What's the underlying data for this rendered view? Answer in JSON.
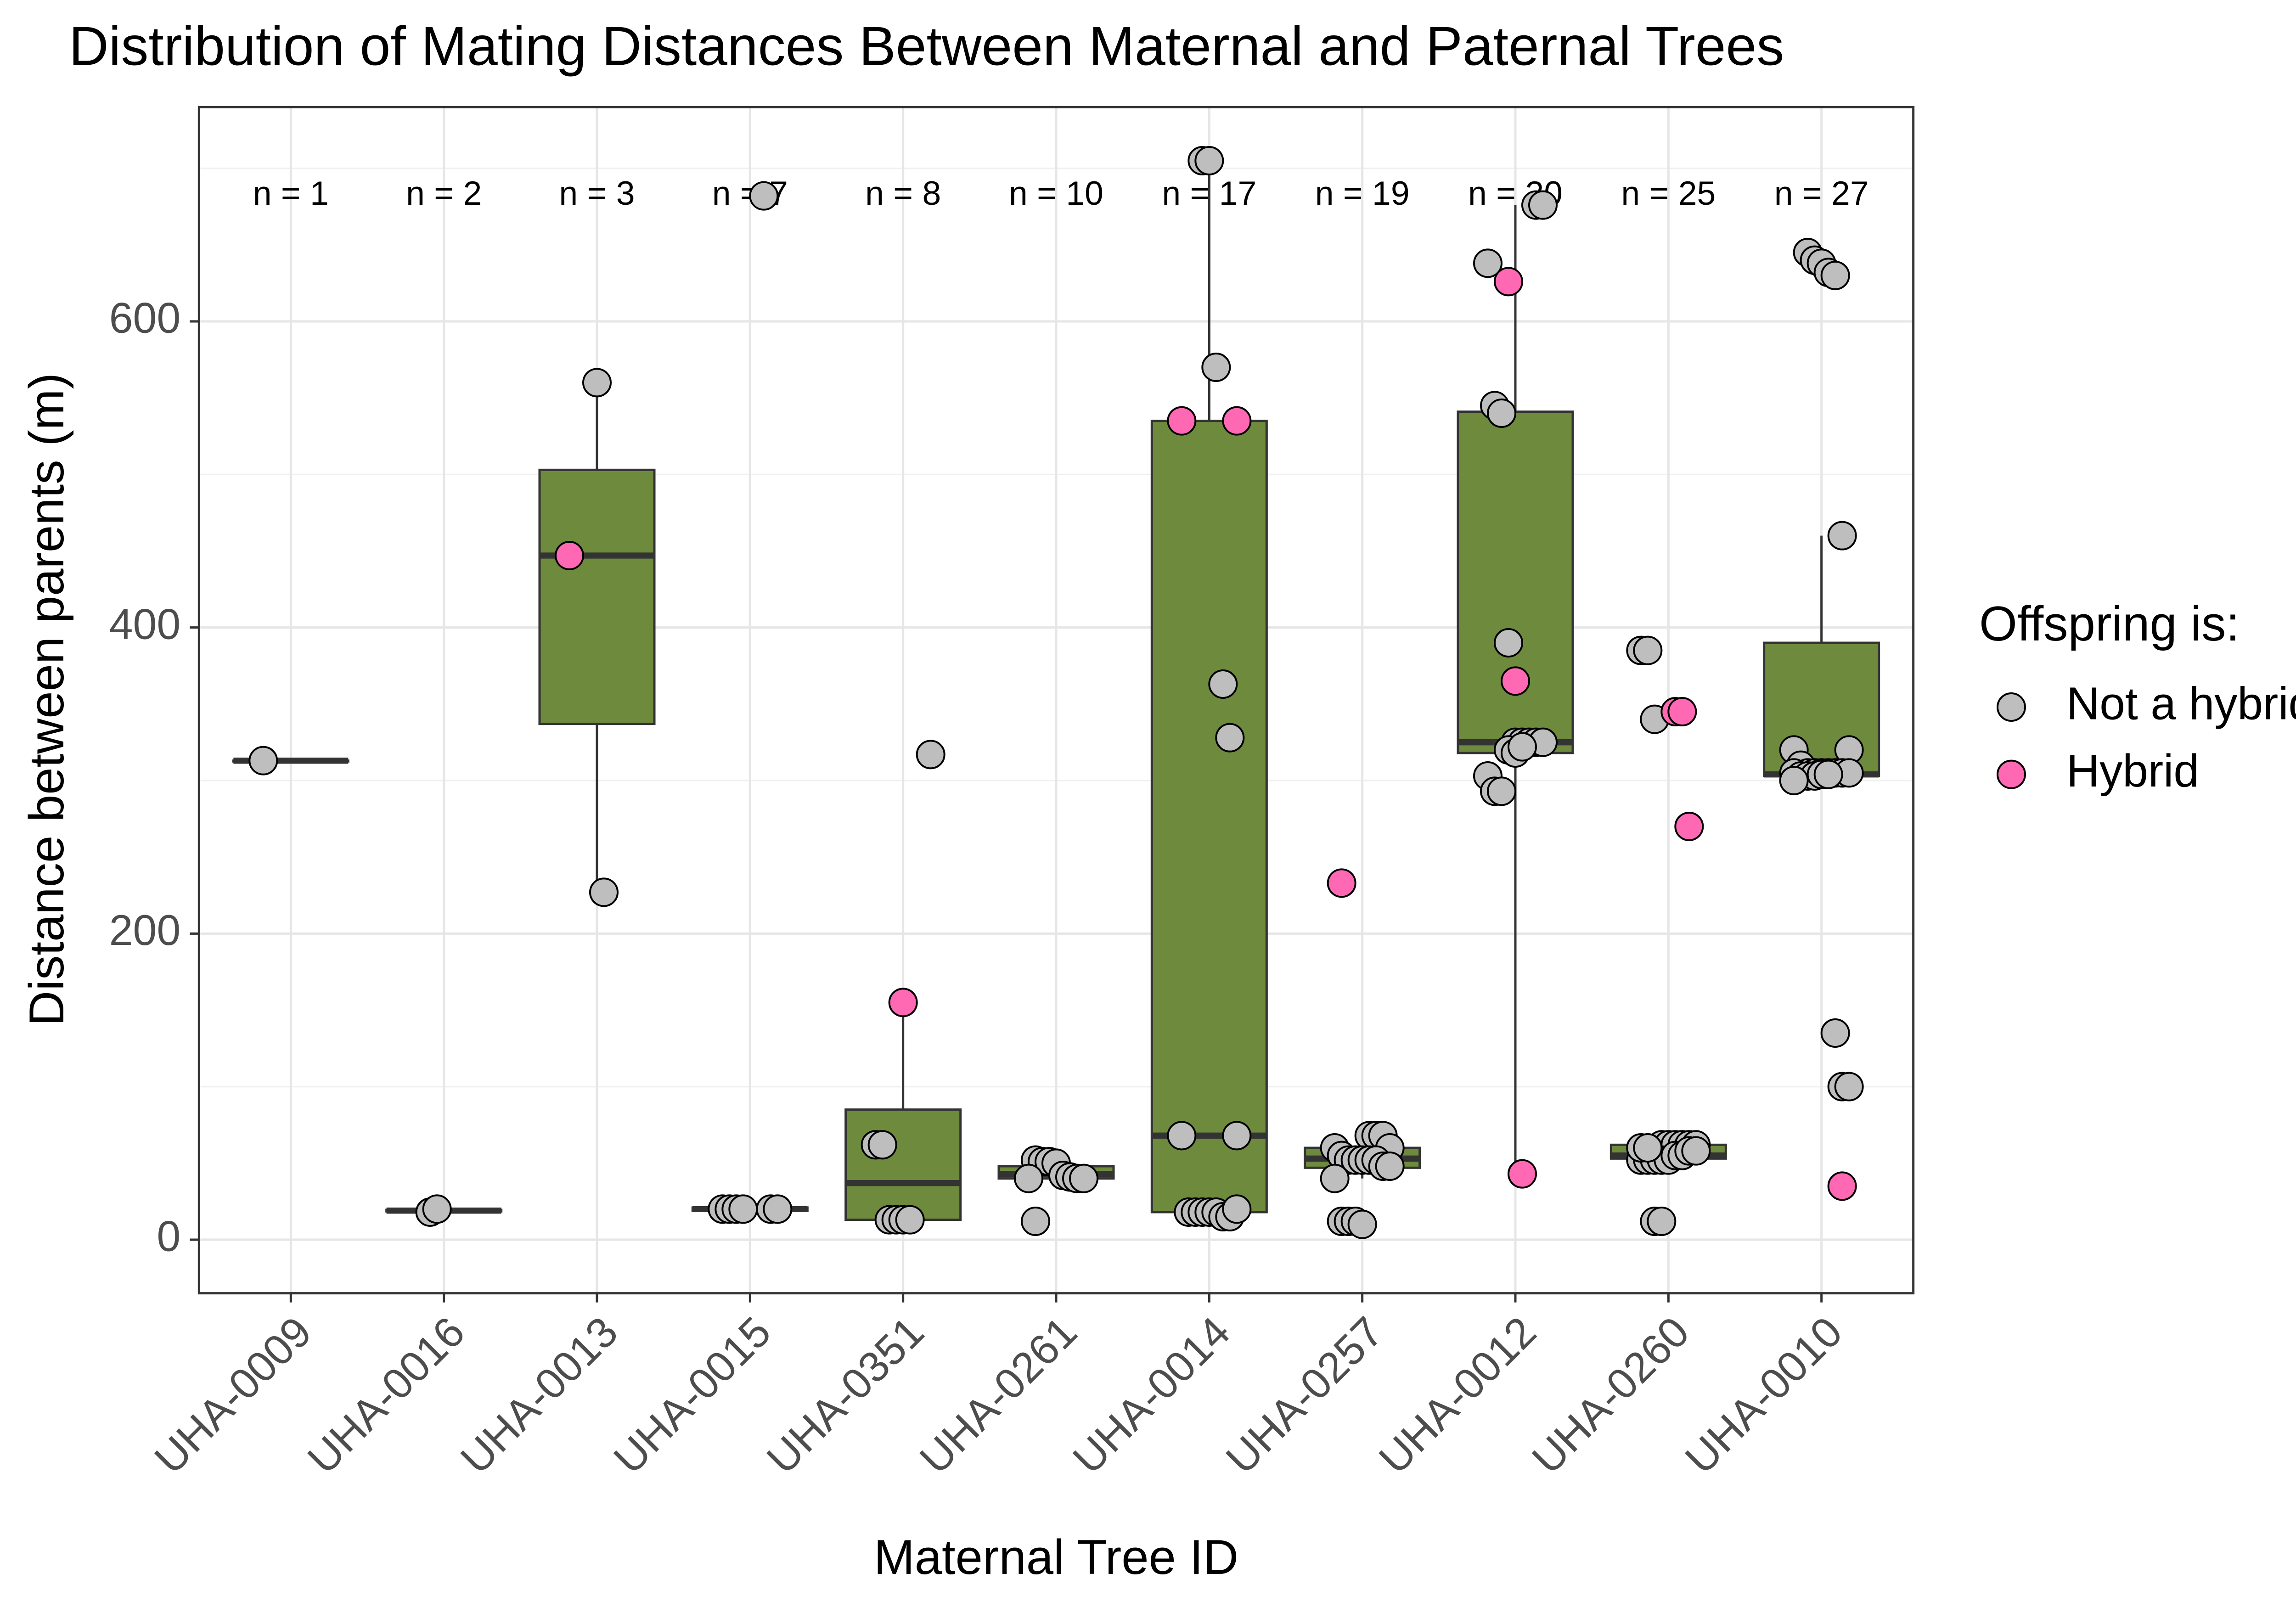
{
  "chart_data": {
    "type": "box",
    "title": "Distribution of Mating Distances Between Maternal and Paternal Trees",
    "x_label": "Maternal Tree ID",
    "y_label": "Distance between parents (m)",
    "categories": [
      "UHA-0009",
      "UHA-0016",
      "UHA-0013",
      "UHA-0015",
      "UHA-0351",
      "UHA-0261",
      "UHA-0014",
      "UHA-0257",
      "UHA-0012",
      "UHA-0260",
      "UHA-0010"
    ],
    "n_labels": [
      "n = 1",
      "n = 2",
      "n = 3",
      "n = 7",
      "n = 8",
      "n = 10",
      "n = 17",
      "n = 19",
      "n = 20",
      "n = 25",
      "n = 27"
    ],
    "box_color": "#6e8b3d",
    "boxes": [
      {
        "low": 313,
        "q1": 313,
        "median": 313,
        "q3": 313,
        "high": 313
      },
      {
        "low": 18,
        "q1": 18.5,
        "median": 19,
        "q3": 19.5,
        "high": 20
      },
      {
        "low": 227,
        "q1": 337,
        "median": 447,
        "q3": 503,
        "high": 560
      },
      {
        "low": 18,
        "q1": 19,
        "median": 20,
        "q3": 21,
        "high": 22
      },
      {
        "low": 13,
        "q1": 13,
        "median": 37,
        "q3": 85,
        "high": 155
      },
      {
        "low": 40,
        "q1": 40,
        "median": 43,
        "q3": 48,
        "high": 52
      },
      {
        "low": 15,
        "q1": 18,
        "median": 68,
        "q3": 535,
        "high": 705
      },
      {
        "low": 40,
        "q1": 47,
        "median": 53,
        "q3": 60,
        "high": 68
      },
      {
        "low": 43,
        "q1": 318,
        "median": 325,
        "q3": 541,
        "high": 676
      },
      {
        "low": 52,
        "q1": 53,
        "median": 55,
        "q3": 62,
        "high": 62
      },
      {
        "low": 303,
        "q1": 303,
        "median": 304,
        "q3": 390,
        "high": 460
      }
    ],
    "legend_title": "Offspring is:",
    "series": [
      {
        "name": "Not a hybrid",
        "color": "#bebebe",
        "values": [
          [
            313
          ],
          [
            18,
            20
          ],
          [
            560,
            227
          ],
          [
            682,
            20,
            20,
            20,
            20,
            20,
            20
          ],
          [
            317,
            62,
            62,
            13,
            13,
            13,
            13
          ],
          [
            52,
            51,
            51,
            50,
            42,
            41,
            40,
            40,
            40,
            12
          ],
          [
            705,
            705,
            570,
            363,
            328,
            68,
            68,
            18,
            18,
            18,
            18,
            18,
            15,
            15,
            20
          ],
          [
            68,
            68,
            68,
            60,
            60,
            55,
            52,
            52,
            52,
            52,
            52,
            48,
            48,
            40,
            12,
            12,
            12,
            10
          ],
          [
            676,
            676,
            638,
            545,
            540,
            390,
            325,
            325,
            325,
            325,
            325,
            303,
            293,
            293,
            320,
            318,
            322
          ],
          [
            385,
            385,
            340,
            62,
            62,
            62,
            62,
            62,
            62,
            52,
            52,
            52,
            52,
            52,
            55,
            55,
            58,
            58,
            60,
            60,
            12,
            12
          ],
          [
            645,
            640,
            638,
            632,
            630,
            460,
            320,
            320,
            310,
            305,
            305,
            305,
            305,
            305,
            305,
            305,
            305,
            303,
            303,
            303,
            304,
            304,
            135,
            100,
            100,
            300
          ]
        ]
      },
      {
        "name": "Hybrid",
        "color": "#ff69b4",
        "values": [
          [],
          [],
          [
            447
          ],
          [],
          [
            155
          ],
          [],
          [
            535,
            535
          ],
          [
            233
          ],
          [
            626,
            365,
            43
          ],
          [
            345,
            345,
            270
          ],
          [
            35
          ]
        ]
      }
    ],
    "ylim": [
      -35,
      740
    ],
    "yticks": [
      0,
      200,
      400,
      600
    ],
    "minor_yticks": [
      100,
      300,
      500,
      700
    ],
    "grid": true
  }
}
